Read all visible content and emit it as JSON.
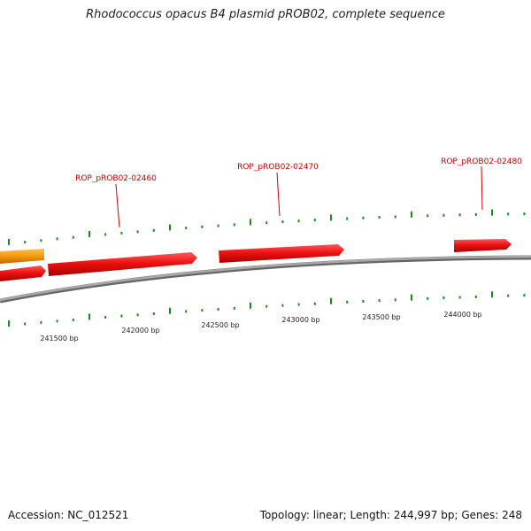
{
  "title": "Rhodococcus opacus B4 plasmid pROB02, complete sequence",
  "footer": {
    "accession": "Accession: NC_012521",
    "summary": "Topology: linear; Length: 244,997 bp; Genes: 248"
  },
  "colors": {
    "gene": "#ee1111",
    "gene_alt": "#f39a10",
    "tick": "#1a8a1a",
    "backbone": "#888888",
    "label": "#cc0000"
  },
  "gene_labels": [
    "ROP_pROB02-02460",
    "ROP_pROB02-02470",
    "ROP_pROB02-02480"
  ],
  "scale_labels": [
    "241500 bp",
    "242000 bp",
    "242500 bp",
    "243000 bp",
    "243500 bp",
    "244000 bp"
  ]
}
